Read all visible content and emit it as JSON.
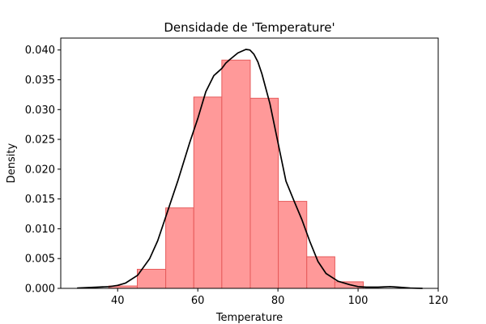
{
  "chart_data": {
    "type": "bar",
    "title": "Densidade de 'Temperature'",
    "xlabel": "Temperature",
    "ylabel": "Density",
    "xlim": [
      25.8,
      120.0
    ],
    "ylim": [
      0.0,
      0.042
    ],
    "xticks": [
      40,
      60,
      80,
      100,
      120
    ],
    "xtick_labels": [
      "40",
      "60",
      "80",
      "100",
      "120"
    ],
    "yticks": [
      0.0,
      0.005,
      0.01,
      0.015,
      0.02,
      0.025,
      0.03,
      0.035,
      0.04
    ],
    "ytick_labels": [
      "0.000",
      "0.005",
      "0.010",
      "0.015",
      "0.020",
      "0.025",
      "0.030",
      "0.035",
      "0.040"
    ],
    "grid": false,
    "series": [
      {
        "kind": "histogram",
        "bins": [
          {
            "x0": 37.8,
            "x1": 44.9,
            "density": 0.0004
          },
          {
            "x0": 44.9,
            "x1": 52.0,
            "density": 0.0032
          },
          {
            "x0": 52.0,
            "x1": 59.0,
            "density": 0.0135
          },
          {
            "x0": 59.0,
            "x1": 66.0,
            "density": 0.0321
          },
          {
            "x0": 66.0,
            "x1": 73.1,
            "density": 0.0383
          },
          {
            "x0": 73.1,
            "x1": 80.1,
            "density": 0.0319
          },
          {
            "x0": 80.1,
            "x1": 87.2,
            "density": 0.0146
          },
          {
            "x0": 87.2,
            "x1": 94.2,
            "density": 0.0053
          },
          {
            "x0": 94.2,
            "x1": 101.3,
            "density": 0.0011
          }
        ],
        "color": "#ff9999",
        "edge_color": "#e65a5a"
      },
      {
        "kind": "kde-line",
        "color": "#000000",
        "x": [
          30,
          35,
          38,
          40,
          42,
          45,
          48,
          50,
          52,
          55,
          58,
          60,
          62,
          64,
          65,
          66,
          67,
          68,
          70,
          72,
          73,
          74,
          75,
          76,
          78,
          80,
          82,
          84,
          86,
          88,
          90,
          92,
          95,
          98,
          100,
          102,
          105,
          108,
          110,
          113,
          116
        ],
        "y": [
          5e-05,
          0.0002,
          0.0003,
          0.0005,
          0.0009,
          0.0022,
          0.005,
          0.008,
          0.012,
          0.018,
          0.0245,
          0.0285,
          0.033,
          0.0357,
          0.0363,
          0.0369,
          0.0378,
          0.0384,
          0.0395,
          0.0401,
          0.04,
          0.0393,
          0.038,
          0.036,
          0.031,
          0.0245,
          0.018,
          0.0147,
          0.0115,
          0.0078,
          0.0045,
          0.0025,
          0.0012,
          0.0006,
          0.0003,
          0.0002,
          0.0002,
          0.0003,
          0.0002,
          5e-05,
          0.0
        ]
      }
    ]
  }
}
